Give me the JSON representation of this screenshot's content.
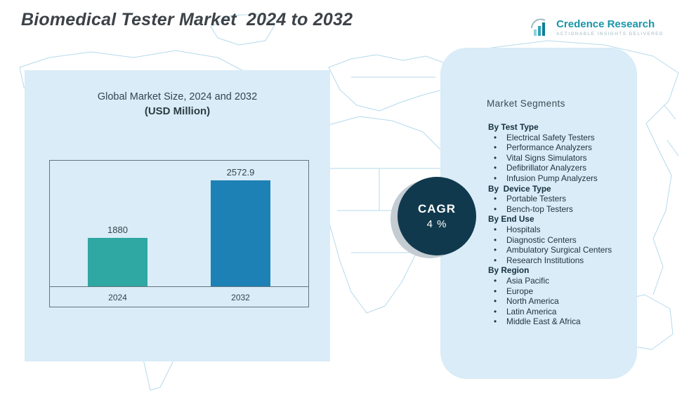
{
  "title": "Biomedical Tester Market  2024 to 2032",
  "logo": {
    "name": "Credence Research",
    "tagline": "Actionable Insights Delivered"
  },
  "chart_panel": {
    "heading_line1": "Global Market Size, 2024 and 2032",
    "heading_line2": "(USD Million)"
  },
  "chart_data": {
    "type": "bar",
    "title": "Global Market Size, 2024 and 2032 (USD Million)",
    "categories": [
      "2024",
      "2032"
    ],
    "values": [
      1880,
      2572.9
    ],
    "value_labels": [
      "1880",
      "2572.9"
    ],
    "colors": [
      "#2fa7a3",
      "#1e81b6"
    ],
    "xlabel": "",
    "ylabel": "USD Million",
    "ylim": [
      1300,
      2650
    ],
    "grid": false,
    "legend": "none"
  },
  "cagr": {
    "label": "CAGR",
    "value": "4 %"
  },
  "segments": {
    "heading": "Market Segments",
    "groups": [
      {
        "label": "By Test Type",
        "items": [
          "Electrical Safety Testers",
          "Performance Analyzers",
          "Vital Signs Simulators",
          "Defibrillator Analyzers",
          "Infusion Pump Analyzers"
        ]
      },
      {
        "label": "By  Device Type",
        "items": [
          "Portable Testers",
          "Bench-top Testers"
        ]
      },
      {
        "label": "By End Use",
        "items": [
          "Hospitals",
          "Diagnostic Centers",
          "Ambulatory Surgical Centers",
          "Research Institutions"
        ]
      },
      {
        "label": "By Region",
        "items": [
          "Asia Pacific",
          "Europe",
          "North America",
          "Latin America",
          "Middle East & Africa"
        ]
      }
    ]
  },
  "colors": {
    "panel": "#d9ecf7",
    "circle": "#10394d",
    "logo_teal": "#1795a8",
    "map_stroke": "#b6daec"
  }
}
